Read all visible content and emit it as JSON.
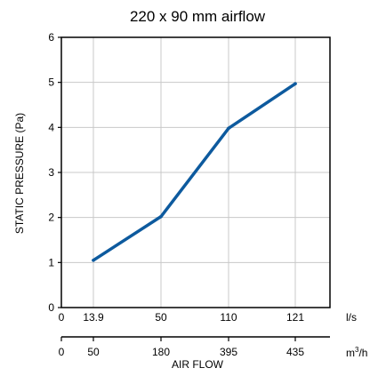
{
  "chart_data": {
    "type": "line",
    "title": "220 x 90 mm airflow",
    "ylabel": "STATIC PRESSURE (Pa)",
    "xlabel": "AIR FLOW",
    "ylim": [
      0,
      6
    ],
    "y_ticks": [
      "0",
      "1",
      "2",
      "3",
      "4",
      "5",
      "6"
    ],
    "grid": true,
    "x_axis_primary": {
      "unit": "l/s",
      "ticks": [
        "0",
        "13.9",
        "50",
        "110",
        "121"
      ]
    },
    "x_axis_secondary": {
      "unit_base": "m",
      "unit_sup": "3",
      "unit_tail": "/h",
      "ticks": [
        "0",
        "50",
        "180",
        "395",
        "435"
      ]
    },
    "series": [
      {
        "color": "#0d5a9e",
        "x": [
          "13.9",
          "50",
          "110",
          "121"
        ],
        "values": [
          1.05,
          2.02,
          3.98,
          4.97
        ]
      }
    ]
  }
}
